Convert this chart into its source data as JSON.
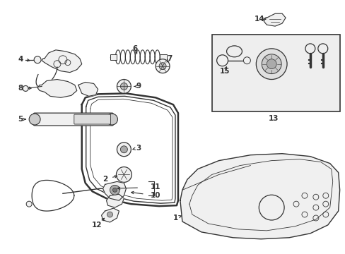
{
  "background_color": "#ffffff",
  "figsize": [
    4.89,
    3.6
  ],
  "dpi": 100,
  "line_color": "#333333",
  "fill_light": "#f0f0f0",
  "fill_mid": "#d8d8d8"
}
